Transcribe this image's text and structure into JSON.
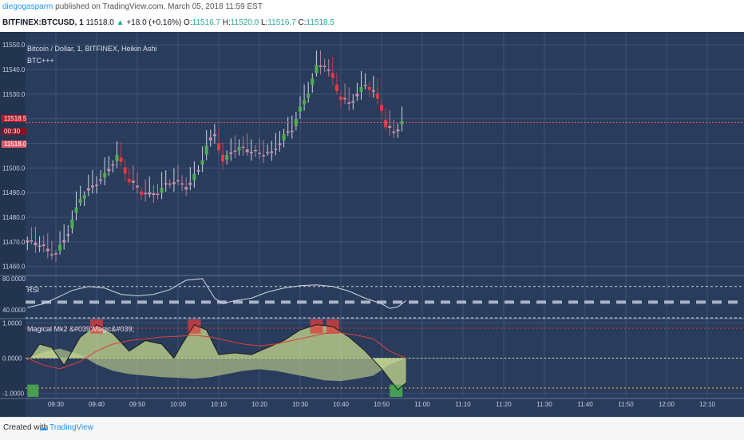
{
  "header": {
    "publisher": "diegogasparm",
    "published_text": "published on TradingView.com, March 05, 2018 11:59 EST",
    "symbol": "BITFINEX:BTCUSD, 1",
    "last": "11518.0",
    "change": "+18.0 (+0.16%)",
    "o_label": "O:",
    "o": "11516.7",
    "h_label": "H:",
    "h": "11520.0",
    "l_label": "L:",
    "l": "11516.7",
    "c_label": "C:",
    "c": "11518.5"
  },
  "panes": {
    "main_title": "Bitcoin / Dollar, 1, BITFINEX, Heikin Ashi",
    "main_study": "BTC+++",
    "rsi_title": "RSI",
    "magic_title": "Magical Mk2 &#039;Magic&#039;"
  },
  "price_tags": {
    "current": "11518.5",
    "countdown": "00:30",
    "prev": "11518.0"
  },
  "footer": {
    "created_with": "Created with",
    "brand": "TradingView"
  },
  "colors": {
    "background": "#2a3c5c",
    "grid": "#3b5478",
    "bull": "#4caf50",
    "bear": "#e53946",
    "pink": "#c98ea8",
    "rsi_line": "#cfd6e6",
    "magic_fill": "#c8d98f",
    "magic_red": "#e03c3c"
  },
  "chart_data": [
    {
      "type": "candlestick",
      "title": "Bitcoin / Dollar, 1, BITFINEX, Heikin Ashi",
      "y_ticks": [
        "11550.0",
        "11540.0",
        "11530.0",
        "11520.0",
        "11510.0",
        "11500.0",
        "11490.0",
        "11480.0",
        "11470.0",
        "11460.0"
      ],
      "ylim": [
        11457,
        11552
      ],
      "x_ticks": [
        "09:30",
        "09:40",
        "09:50",
        "10:00",
        "10:10",
        "10:20",
        "10:30",
        "10:40",
        "10:50",
        "11:00",
        "11:10",
        "11:20",
        "11:30",
        "11:40",
        "11:50",
        "12:00",
        "12:10"
      ],
      "x_minutes_from_0930": [
        0,
        10,
        20,
        30,
        40,
        50,
        60,
        70,
        80,
        90,
        100,
        110,
        120,
        130,
        140,
        150,
        160
      ],
      "close_series": {
        "t": [
          -7,
          -4,
          -2,
          0,
          3,
          6,
          8,
          10,
          12,
          15,
          18,
          21,
          24,
          27,
          29,
          32,
          35,
          37,
          39,
          41,
          43,
          46,
          49,
          53,
          56,
          58,
          60,
          62,
          64,
          66,
          68,
          70,
          72,
          74,
          76,
          78,
          80,
          81,
          83,
          85
        ],
        "close": [
          11470,
          11469,
          11466,
          11465,
          11474,
          11488,
          11491,
          11494,
          11497,
          11505,
          11495,
          11490,
          11489,
          11493,
          11495,
          11492,
          11499,
          11509,
          11514,
          11502,
          11507,
          11508,
          11506,
          11506,
          11513,
          11516,
          11524,
          11531,
          11541,
          11542,
          11536,
          11528,
          11526,
          11530,
          11534,
          11531,
          11524,
          11517,
          11514,
          11519
        ]
      },
      "last_price": 11518.5
    },
    {
      "type": "line",
      "title": "RSI",
      "y_ticks": [
        "80.0000",
        "40.0000"
      ],
      "ylim": [
        30,
        82
      ],
      "levels": [
        70,
        50,
        30
      ],
      "series": [
        {
          "t": [
            -7,
            -3,
            0,
            4,
            8,
            12,
            16,
            20,
            24,
            28,
            32,
            36,
            39,
            41,
            44,
            48,
            52,
            56,
            60,
            64,
            68,
            72,
            76,
            80,
            82,
            84,
            86
          ],
          "values": [
            43,
            48,
            55,
            65,
            70,
            68,
            60,
            58,
            60,
            66,
            78,
            80,
            55,
            48,
            52,
            55,
            63,
            68,
            71,
            72,
            70,
            64,
            55,
            48,
            42,
            44,
            52
          ]
        }
      ]
    },
    {
      "type": "area",
      "title": "Magical Mk2 &#039;Magic&#039;",
      "y_ticks": [
        "1.0000",
        "0.0000",
        "-1.0000"
      ],
      "ylim": [
        -1.1,
        1.1
      ],
      "levels": [
        0.85,
        0,
        -0.85
      ],
      "series": [
        {
          "t": [
            -7,
            -4,
            -1,
            2,
            6,
            10,
            14,
            18,
            22,
            26,
            29,
            31,
            34,
            37,
            40,
            44,
            48,
            52,
            56,
            60,
            64,
            68,
            72,
            76,
            80,
            84,
            86
          ],
          "values": [
            -0.1,
            0.4,
            0.3,
            -0.2,
            0.6,
            0.95,
            0.7,
            0.2,
            0.5,
            0.4,
            0.0,
            0.4,
            0.95,
            0.8,
            0.1,
            0.15,
            0.1,
            0.3,
            0.5,
            0.8,
            0.95,
            0.9,
            0.6,
            0.2,
            -0.3,
            -0.9,
            -0.7
          ]
        },
        {
          "t": [
            -7,
            -3,
            1,
            6,
            10,
            14,
            18,
            22,
            26,
            30,
            34,
            38,
            42,
            46,
            50,
            54,
            58,
            62,
            66,
            70,
            74,
            78,
            82,
            86
          ],
          "values": [
            0.0,
            -0.2,
            -0.3,
            -0.1,
            0.2,
            0.4,
            0.5,
            0.55,
            0.6,
            0.62,
            0.65,
            0.6,
            0.5,
            0.4,
            0.35,
            0.4,
            0.5,
            0.6,
            0.7,
            0.72,
            0.65,
            0.55,
            0.2,
            0.0
          ]
        }
      ]
    }
  ]
}
